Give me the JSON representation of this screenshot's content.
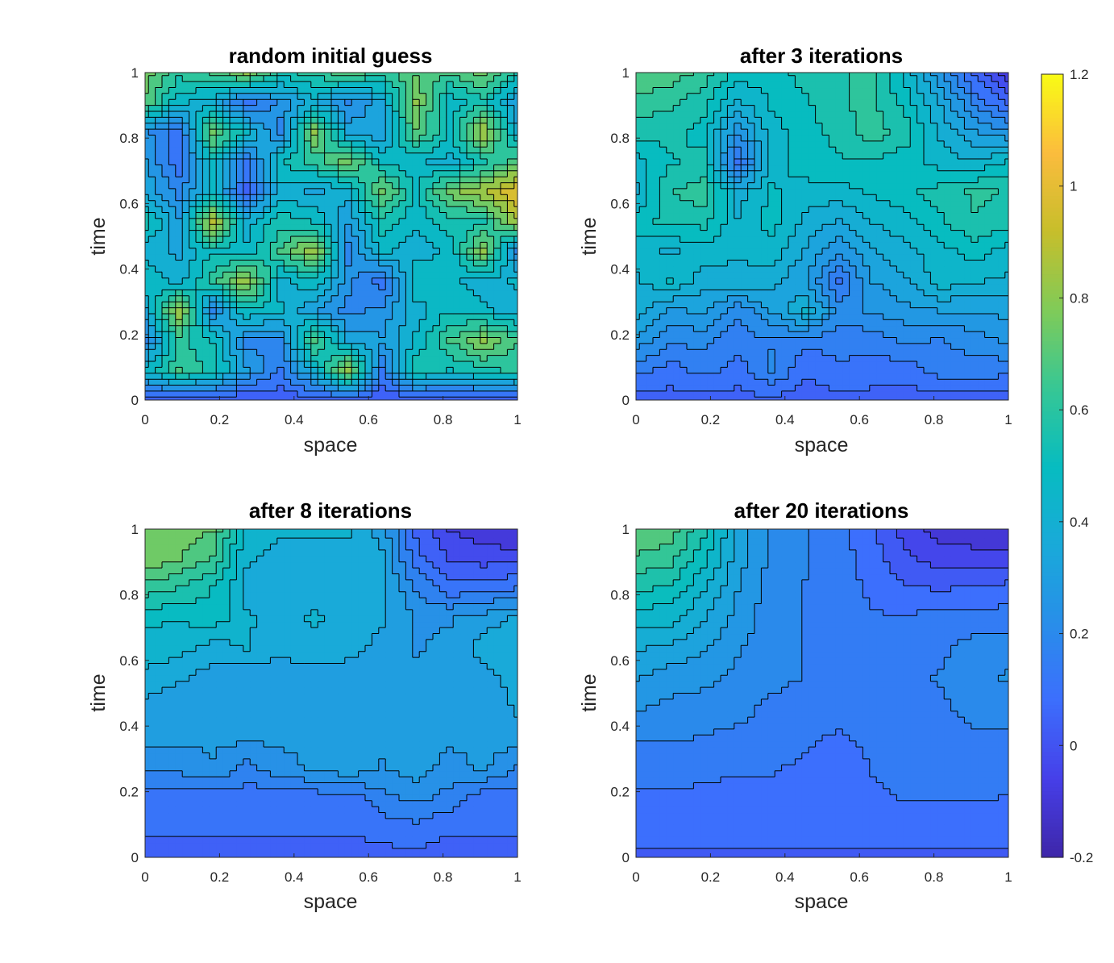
{
  "chart_data": [
    {
      "type": "heatmap",
      "subtype": "filled-contour",
      "title": "random initial guess",
      "xlabel": "space",
      "ylabel": "time",
      "xlim": [
        0,
        1
      ],
      "ylim": [
        0,
        1
      ],
      "xticks": [
        "0",
        "0.2",
        "0.4",
        "0.6",
        "0.8",
        "1"
      ],
      "yticks": [
        "0",
        "0.2",
        "0.4",
        "0.6",
        "0.8",
        "1"
      ],
      "x": [
        0,
        0.0909,
        0.1818,
        0.2727,
        0.3636,
        0.4545,
        0.5455,
        0.6364,
        0.7273,
        0.8182,
        0.9091,
        1
      ],
      "y": [
        0,
        0.0909,
        0.1818,
        0.2727,
        0.3636,
        0.4545,
        0.5455,
        0.6364,
        0.7273,
        0.8182,
        0.9091,
        1
      ],
      "z": [
        [
          0.02,
          0.01,
          0.02,
          0.01,
          0.02,
          0.03,
          0.02,
          0.01,
          0.02,
          0.01,
          0.02,
          0.02
        ],
        [
          0.45,
          0.65,
          0.55,
          0.3,
          0.15,
          0.4,
          0.85,
          0.15,
          0.55,
          0.5,
          0.55,
          0.6
        ],
        [
          0.2,
          0.6,
          0.5,
          0.2,
          0.2,
          0.7,
          0.35,
          0.3,
          0.45,
          0.65,
          0.8,
          0.65
        ],
        [
          0.35,
          0.85,
          0.2,
          0.5,
          0.45,
          0.3,
          0.2,
          0.25,
          0.4,
          0.5,
          0.45,
          0.4
        ],
        [
          0.5,
          0.4,
          0.6,
          0.85,
          0.4,
          0.5,
          0.25,
          0.1,
          0.5,
          0.45,
          0.4,
          0.45
        ],
        [
          0.4,
          0.35,
          0.5,
          0.45,
          0.65,
          0.85,
          0.2,
          0.45,
          0.4,
          0.45,
          0.8,
          0.2
        ],
        [
          0.55,
          0.3,
          0.9,
          0.4,
          0.55,
          0.5,
          0.3,
          0.55,
          0.45,
          0.55,
          0.55,
          0.85
        ],
        [
          0.35,
          0.2,
          0.45,
          0.05,
          0.4,
          0.35,
          0.4,
          0.75,
          0.5,
          0.75,
          0.85,
          1.0
        ],
        [
          0.3,
          0.1,
          0.5,
          0.15,
          0.5,
          0.6,
          0.75,
          0.5,
          0.45,
          0.4,
          0.55,
          0.7
        ],
        [
          0.25,
          0.1,
          0.75,
          0.45,
          0.2,
          0.8,
          0.35,
          0.3,
          0.7,
          0.5,
          0.85,
          0.4
        ],
        [
          0.7,
          0.45,
          0.4,
          0.1,
          0.25,
          0.4,
          0.2,
          0.35,
          0.8,
          0.45,
          0.55,
          0.3
        ],
        [
          0.75,
          0.6,
          0.65,
          0.8,
          0.55,
          0.6,
          0.7,
          0.6,
          0.7,
          0.65,
          0.75,
          0.55
        ]
      ]
    },
    {
      "type": "heatmap",
      "subtype": "filled-contour",
      "title": "after 3 iterations",
      "xlabel": "space",
      "ylabel": "time",
      "xlim": [
        0,
        1
      ],
      "ylim": [
        0,
        1
      ],
      "xticks": [
        "0",
        "0.2",
        "0.4",
        "0.6",
        "0.8",
        "1"
      ],
      "yticks": [
        "0",
        "0.2",
        "0.4",
        "0.6",
        "0.8",
        "1"
      ],
      "x": [
        0,
        0.0909,
        0.1818,
        0.2727,
        0.3636,
        0.4545,
        0.5455,
        0.6364,
        0.7273,
        0.8182,
        0.9091,
        1
      ],
      "y": [
        0,
        0.0909,
        0.1818,
        0.2727,
        0.3636,
        0.4545,
        0.5455,
        0.6364,
        0.7273,
        0.8182,
        0.9091,
        1
      ],
      "z": [
        [
          0.04,
          0.05,
          0.04,
          0.05,
          0.05,
          0.04,
          0.05,
          0.05,
          0.04,
          0.05,
          0.05,
          0.04
        ],
        [
          0.15,
          0.1,
          0.15,
          0.1,
          0.2,
          0.08,
          0.12,
          0.1,
          0.1,
          0.15,
          0.15,
          0.15
        ],
        [
          0.28,
          0.2,
          0.2,
          0.15,
          0.18,
          0.15,
          0.15,
          0.15,
          0.2,
          0.18,
          0.22,
          0.25
        ],
        [
          0.38,
          0.28,
          0.32,
          0.2,
          0.3,
          0.42,
          0.22,
          0.25,
          0.28,
          0.3,
          0.3,
          0.32
        ],
        [
          0.4,
          0.48,
          0.38,
          0.4,
          0.38,
          0.3,
          0.12,
          0.3,
          0.35,
          0.45,
          0.42,
          0.4
        ],
        [
          0.45,
          0.4,
          0.45,
          0.42,
          0.45,
          0.35,
          0.25,
          0.35,
          0.4,
          0.45,
          0.5,
          0.45
        ],
        [
          0.5,
          0.55,
          0.55,
          0.42,
          0.5,
          0.4,
          0.35,
          0.42,
          0.45,
          0.52,
          0.58,
          0.55
        ],
        [
          0.4,
          0.58,
          0.62,
          0.38,
          0.48,
          0.45,
          0.45,
          0.48,
          0.52,
          0.55,
          0.6,
          0.58
        ],
        [
          0.45,
          0.52,
          0.55,
          0.1,
          0.45,
          0.5,
          0.52,
          0.52,
          0.5,
          0.45,
          0.42,
          0.48
        ],
        [
          0.55,
          0.55,
          0.5,
          0.25,
          0.45,
          0.5,
          0.55,
          0.62,
          0.55,
          0.4,
          0.3,
          0.25
        ],
        [
          0.62,
          0.6,
          0.55,
          0.4,
          0.48,
          0.52,
          0.58,
          0.6,
          0.5,
          0.35,
          0.18,
          0.05
        ],
        [
          0.7,
          0.68,
          0.62,
          0.5,
          0.5,
          0.55,
          0.58,
          0.6,
          0.45,
          0.25,
          0.05,
          -0.1
        ]
      ]
    },
    {
      "type": "heatmap",
      "subtype": "filled-contour",
      "title": "after 8 iterations",
      "xlabel": "space",
      "ylabel": "time",
      "xlim": [
        0,
        1
      ],
      "ylim": [
        0,
        1
      ],
      "xticks": [
        "0",
        "0.2",
        "0.4",
        "0.6",
        "0.8",
        "1"
      ],
      "yticks": [
        "0",
        "0.2",
        "0.4",
        "0.6",
        "0.8",
        "1"
      ],
      "x": [
        0,
        0.0909,
        0.1818,
        0.2727,
        0.3636,
        0.4545,
        0.5455,
        0.6364,
        0.7273,
        0.8182,
        0.9091,
        1
      ],
      "y": [
        0,
        0.0909,
        0.1818,
        0.2727,
        0.3636,
        0.4545,
        0.5455,
        0.6364,
        0.7273,
        0.8182,
        0.9091,
        1
      ],
      "z": [
        [
          0.05,
          0.05,
          0.05,
          0.05,
          0.05,
          0.05,
          0.05,
          0.05,
          0.05,
          0.05,
          0.05,
          0.05
        ],
        [
          0.08,
          0.08,
          0.08,
          0.08,
          0.08,
          0.08,
          0.08,
          0.1,
          0.12,
          0.08,
          0.08,
          0.08
        ],
        [
          0.1,
          0.1,
          0.1,
          0.1,
          0.1,
          0.1,
          0.1,
          0.18,
          0.22,
          0.18,
          0.1,
          0.1
        ],
        [
          0.22,
          0.22,
          0.26,
          0.18,
          0.24,
          0.28,
          0.32,
          0.26,
          0.3,
          0.24,
          0.28,
          0.2
        ],
        [
          0.28,
          0.28,
          0.28,
          0.28,
          0.28,
          0.28,
          0.28,
          0.28,
          0.28,
          0.28,
          0.28,
          0.3
        ],
        [
          0.3,
          0.28,
          0.28,
          0.28,
          0.28,
          0.28,
          0.28,
          0.28,
          0.28,
          0.28,
          0.28,
          0.34
        ],
        [
          0.38,
          0.34,
          0.3,
          0.28,
          0.3,
          0.28,
          0.28,
          0.28,
          0.28,
          0.28,
          0.3,
          0.36
        ],
        [
          0.42,
          0.42,
          0.36,
          0.4,
          0.34,
          0.38,
          0.36,
          0.3,
          0.26,
          0.28,
          0.36,
          0.38
        ],
        [
          0.48,
          0.46,
          0.5,
          0.4,
          0.38,
          0.4,
          0.38,
          0.34,
          0.26,
          0.26,
          0.3,
          0.34
        ],
        [
          0.62,
          0.58,
          0.52,
          0.38,
          0.38,
          0.38,
          0.38,
          0.36,
          0.2,
          0.1,
          0.12,
          0.14
        ],
        [
          0.76,
          0.72,
          0.64,
          0.4,
          0.38,
          0.38,
          0.38,
          0.34,
          0.1,
          0.0,
          -0.02,
          -0.02
        ],
        [
          0.78,
          0.76,
          0.72,
          0.44,
          0.4,
          0.4,
          0.4,
          0.3,
          0.06,
          -0.06,
          -0.1,
          -0.12
        ]
      ]
    },
    {
      "type": "heatmap",
      "subtype": "filled-contour",
      "title": "after 20 iterations",
      "xlabel": "space",
      "ylabel": "time",
      "xlim": [
        0,
        1
      ],
      "ylim": [
        0,
        1
      ],
      "xticks": [
        "0",
        "0.2",
        "0.4",
        "0.6",
        "0.8",
        "1"
      ],
      "yticks": [
        "0",
        "0.2",
        "0.4",
        "0.6",
        "0.8",
        "1"
      ],
      "x": [
        0,
        0.0909,
        0.1818,
        0.2727,
        0.3636,
        0.4545,
        0.5455,
        0.6364,
        0.7273,
        0.8182,
        0.9091,
        1
      ],
      "y": [
        0,
        0.0909,
        0.1818,
        0.2727,
        0.3636,
        0.4545,
        0.5455,
        0.6364,
        0.7273,
        0.8182,
        0.9091,
        1
      ],
      "z": [
        [
          0.05,
          0.05,
          0.05,
          0.05,
          0.05,
          0.05,
          0.05,
          0.05,
          0.05,
          0.05,
          0.05,
          0.05
        ],
        [
          0.06,
          0.06,
          0.06,
          0.06,
          0.06,
          0.06,
          0.06,
          0.06,
          0.06,
          0.06,
          0.06,
          0.06
        ],
        [
          0.1,
          0.1,
          0.1,
          0.09,
          0.09,
          0.08,
          0.08,
          0.1,
          0.12,
          0.12,
          0.12,
          0.11
        ],
        [
          0.14,
          0.14,
          0.13,
          0.12,
          0.12,
          0.1,
          0.06,
          0.12,
          0.14,
          0.14,
          0.14,
          0.13
        ],
        [
          0.18,
          0.18,
          0.17,
          0.16,
          0.15,
          0.13,
          0.1,
          0.14,
          0.15,
          0.15,
          0.16,
          0.16
        ],
        [
          0.24,
          0.22,
          0.21,
          0.19,
          0.16,
          0.15,
          0.14,
          0.14,
          0.15,
          0.16,
          0.2,
          0.21
        ],
        [
          0.3,
          0.26,
          0.25,
          0.22,
          0.19,
          0.17,
          0.15,
          0.15,
          0.15,
          0.18,
          0.22,
          0.24
        ],
        [
          0.36,
          0.34,
          0.3,
          0.24,
          0.2,
          0.17,
          0.15,
          0.15,
          0.14,
          0.16,
          0.2,
          0.22
        ],
        [
          0.44,
          0.44,
          0.36,
          0.27,
          0.2,
          0.17,
          0.15,
          0.12,
          0.12,
          0.15,
          0.14,
          0.14
        ],
        [
          0.55,
          0.52,
          0.42,
          0.3,
          0.2,
          0.17,
          0.14,
          0.1,
          0.06,
          0.05,
          0.06,
          0.08
        ],
        [
          0.65,
          0.62,
          0.5,
          0.32,
          0.22,
          0.18,
          0.14,
          0.08,
          0.0,
          -0.03,
          -0.04,
          -0.05
        ],
        [
          0.72,
          0.7,
          0.55,
          0.34,
          0.22,
          0.18,
          0.14,
          0.06,
          -0.04,
          -0.1,
          -0.12,
          -0.13
        ]
      ]
    }
  ],
  "colorbar": {
    "clim": [
      -0.2,
      1.2
    ],
    "ticks": [
      "-0.2",
      "0",
      "0.2",
      "0.4",
      "0.6",
      "0.8",
      "1",
      "1.2"
    ],
    "colormap": "parula"
  },
  "colors": {
    "contour_line": "#000000",
    "axis": "#262626",
    "background": "#ffffff"
  }
}
